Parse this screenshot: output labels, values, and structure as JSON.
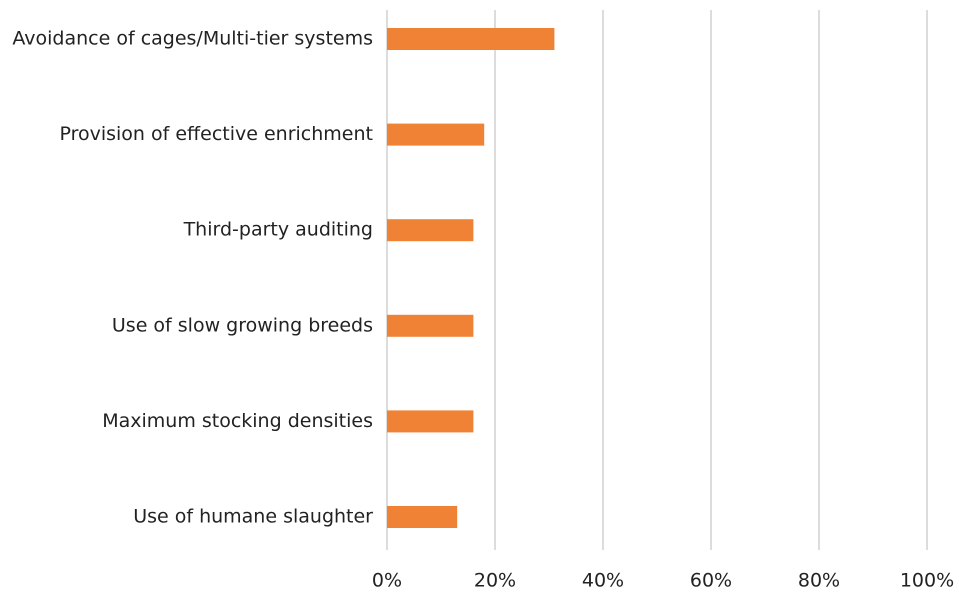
{
  "chart_data": {
    "type": "bar",
    "orientation": "horizontal",
    "categories": [
      "Avoidance of cages/Multi-tier systems",
      "Provision of effective enrichment",
      "Third-party auditing",
      "Use of slow growing breeds",
      "Maximum stocking densities",
      "Use of humane slaughter"
    ],
    "values": [
      31,
      18,
      16,
      16,
      16,
      13
    ],
    "color": "#f08236",
    "xlim": [
      0,
      100
    ],
    "xticks": [
      {
        "value": 0,
        "label": "0%"
      },
      {
        "value": 20,
        "label": "20%"
      },
      {
        "value": 40,
        "label": "40%"
      },
      {
        "value": 60,
        "label": "60%"
      },
      {
        "value": 80,
        "label": "80%"
      },
      {
        "value": 100,
        "label": "100%"
      }
    ],
    "grid": true
  }
}
